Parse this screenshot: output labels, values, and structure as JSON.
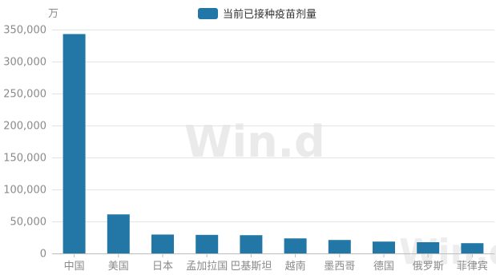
{
  "chart_data": {
    "type": "bar",
    "unit": "万",
    "categories": [
      "中国",
      "美国",
      "日本",
      "孟加拉国",
      "巴基斯坦",
      "越南",
      "墨西哥",
      "德国",
      "俄罗斯",
      "菲律宾"
    ],
    "series": [
      {
        "name": "当前已接种疫苗剂量",
        "values": [
          343000,
          61000,
          29500,
          29000,
          28500,
          23500,
          21000,
          18500,
          17500,
          16000
        ]
      }
    ],
    "ylim": [
      0,
      350000
    ],
    "yticks": [
      "0",
      "50,000",
      "100,000",
      "150,000",
      "200,000",
      "250,000",
      "300,000",
      "350,000"
    ],
    "grid": true,
    "legend_position": "top-center",
    "colors": {
      "bar": "#2277a6",
      "grid": "#e3e3e3",
      "axis": "#bdbdbd",
      "tick_text": "#8a8a8a"
    }
  },
  "watermark": {
    "text": "Win.d"
  }
}
